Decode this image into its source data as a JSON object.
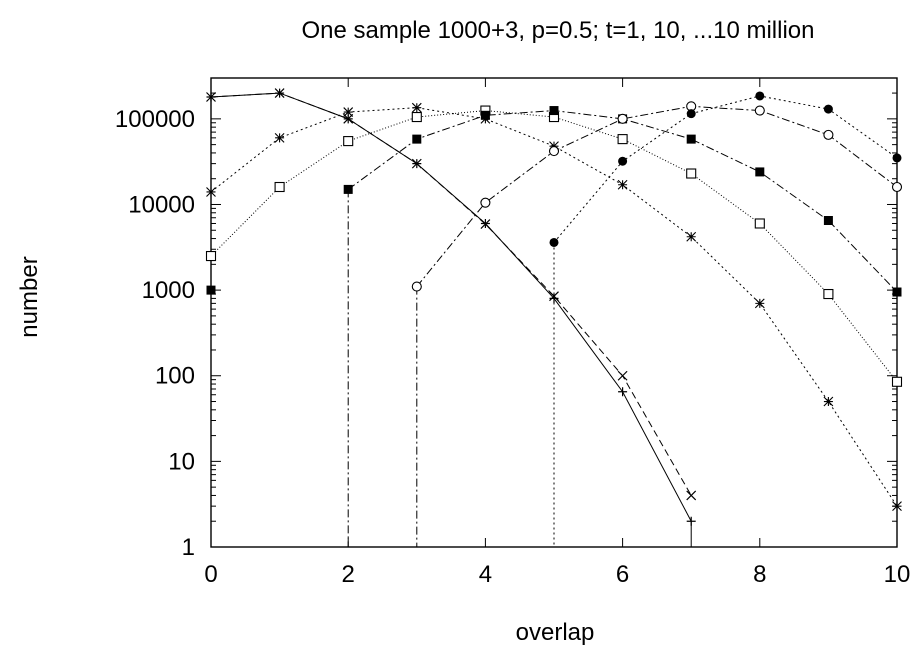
{
  "chart_data": {
    "type": "line",
    "title": "One sample 1000+3, p=0.5; t=1, 10, ...10 million",
    "xlabel": "overlap",
    "ylabel": "number",
    "xlim": [
      0,
      10
    ],
    "ylim": [
      1,
      300000
    ],
    "yscale": "log",
    "grid": false,
    "legend": "none",
    "x_ticks": [
      "0",
      "2",
      "4",
      "6",
      "8",
      "10"
    ],
    "y_ticks": [
      "1",
      "10",
      "100",
      "1000",
      "10000",
      "100000"
    ],
    "series": [
      {
        "marker": "plus",
        "dash": "solid",
        "points": [
          [
            0,
            180000
          ],
          [
            1,
            200000
          ],
          [
            2,
            100000
          ],
          [
            3,
            30000
          ],
          [
            4,
            6000
          ],
          [
            5,
            800
          ],
          [
            6,
            65
          ],
          [
            7,
            2
          ]
        ]
      },
      {
        "marker": "cross",
        "dash": "dashed",
        "points": [
          [
            0,
            180000
          ],
          [
            1,
            200000
          ],
          [
            2,
            100000
          ],
          [
            3,
            30000
          ],
          [
            4,
            5900
          ],
          [
            5,
            850
          ],
          [
            6,
            100
          ],
          [
            7,
            4
          ]
        ]
      },
      {
        "marker": "star",
        "dash": "dotted",
        "points": [
          [
            0,
            14000
          ],
          [
            1,
            60000
          ],
          [
            2,
            120000
          ],
          [
            3,
            135000
          ],
          [
            4,
            100000
          ],
          [
            5,
            48000
          ],
          [
            6,
            17000
          ],
          [
            7,
            4200
          ],
          [
            8,
            700
          ],
          [
            9,
            50
          ],
          [
            10,
            3
          ]
        ]
      },
      {
        "marker": "open-square",
        "dash": "fine-dotted",
        "points": [
          [
            0,
            2500
          ],
          [
            1,
            16000
          ],
          [
            2,
            55000
          ],
          [
            3,
            105000
          ],
          [
            4,
            125000
          ],
          [
            5,
            105000
          ],
          [
            6,
            58000
          ],
          [
            7,
            23000
          ],
          [
            8,
            6000
          ],
          [
            9,
            900
          ],
          [
            10,
            85
          ]
        ]
      },
      {
        "marker": "filled-square",
        "dash": "dash-dot",
        "drop_to_floor_at": 2,
        "points": [
          [
            0,
            1000
          ],
          [
            2,
            15000
          ],
          [
            3,
            58000
          ],
          [
            4,
            110000
          ],
          [
            5,
            125000
          ],
          [
            6,
            100000
          ],
          [
            7,
            58000
          ],
          [
            8,
            24000
          ],
          [
            9,
            6500
          ],
          [
            10,
            950
          ]
        ]
      },
      {
        "marker": "open-circle",
        "dash": "dash-dot",
        "drop_to_floor_at": 3,
        "points": [
          [
            3,
            1100
          ],
          [
            4,
            10500
          ],
          [
            5,
            42000
          ],
          [
            6,
            100000
          ],
          [
            7,
            140000
          ],
          [
            8,
            125000
          ],
          [
            9,
            65000
          ],
          [
            10,
            16000
          ]
        ]
      },
      {
        "marker": "filled-circle",
        "dash": "dotted",
        "drop_to_floor_at": 5,
        "points": [
          [
            5,
            3600
          ],
          [
            6,
            32000
          ],
          [
            7,
            115000
          ],
          [
            8,
            185000
          ],
          [
            9,
            130000
          ],
          [
            10,
            35000
          ]
        ]
      }
    ]
  }
}
